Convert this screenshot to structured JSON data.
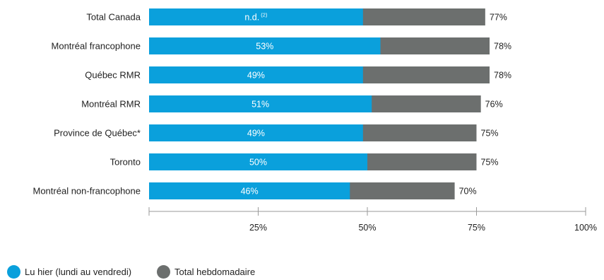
{
  "chart_data": {
    "type": "bar",
    "orientation": "horizontal",
    "stacked": "overlay",
    "categories": [
      "Total Canada",
      "Montréal francophone",
      "Québec RMR",
      "Montréal RMR",
      "Province de Québec*",
      "Toronto",
      "Montréal non-francophone"
    ],
    "series": [
      {
        "name": "Lu hier (lundi au vendredi)",
        "color": "#0aa0dc",
        "values": [
          49,
          53,
          49,
          51,
          49,
          50,
          46
        ],
        "labels": [
          "n.d.",
          "53%",
          "49%",
          "51%",
          "49%",
          "50%",
          "46%"
        ]
      },
      {
        "name": "Total hebdomadaire",
        "color": "#6c6f6e",
        "values": [
          77,
          78,
          78,
          76,
          75,
          75,
          70
        ],
        "labels": [
          "77%",
          "78%",
          "78%",
          "76%",
          "75%",
          "75%",
          "70%"
        ]
      }
    ],
    "footnote_marker": "(2)",
    "xlim": [
      0,
      100
    ],
    "x_ticks": [
      "25%",
      "50%",
      "75%",
      "100%"
    ],
    "x_tick_values": [
      25,
      50,
      75,
      100
    ],
    "grid": false,
    "legend_position": "bottom-left"
  }
}
